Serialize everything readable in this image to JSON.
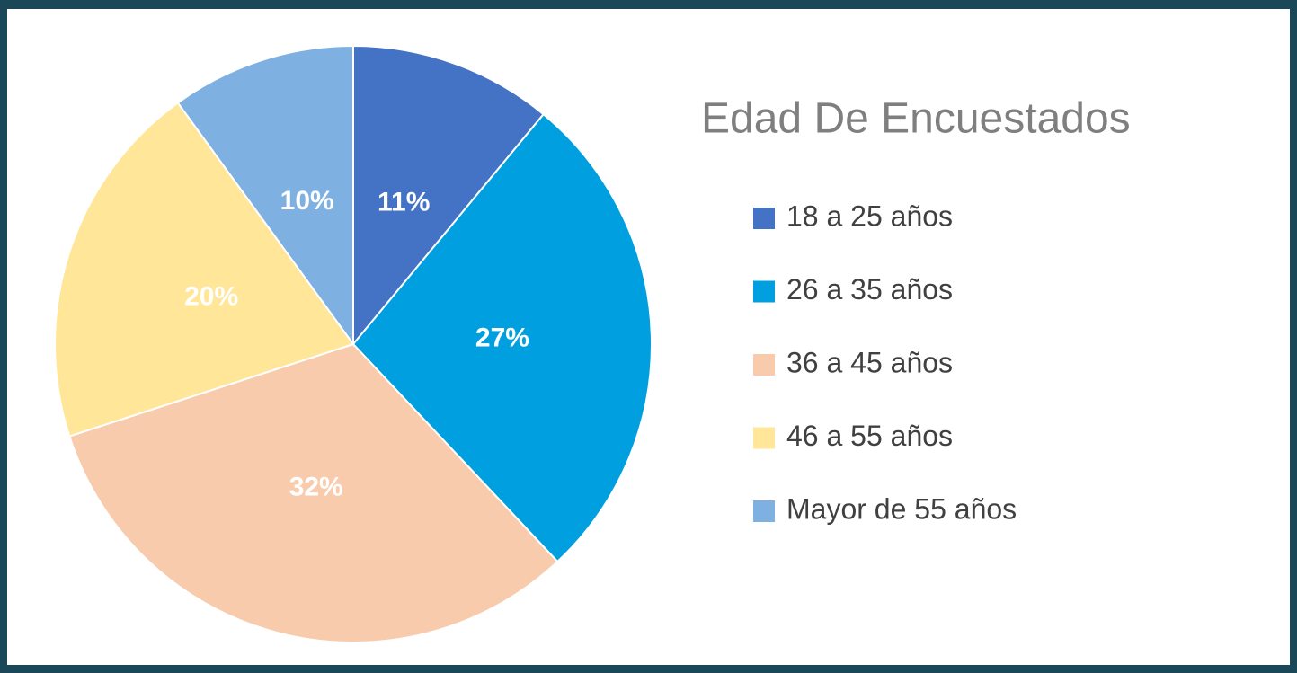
{
  "chart_data": {
    "type": "pie",
    "title": "Edad De Encuestados",
    "categories": [
      "18 a 25 años",
      "26 a 35 años",
      "36 a 45 años",
      "46 a 55 años",
      "Mayor de 55 años"
    ],
    "values": [
      11,
      27,
      32,
      20,
      10
    ],
    "value_labels": [
      "11%",
      "27%",
      "32%",
      "20%",
      "10%"
    ],
    "colors": [
      "#4472c4",
      "#009fdf",
      "#f8cbad",
      "#ffe699",
      "#7eb1e1"
    ],
    "legend": "right"
  }
}
